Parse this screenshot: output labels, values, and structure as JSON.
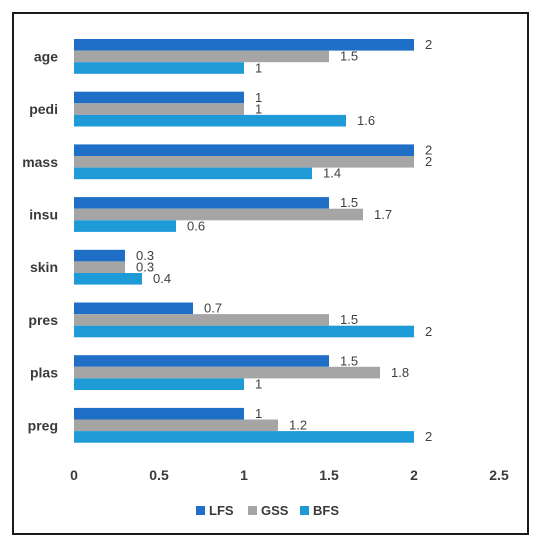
{
  "chart_data": {
    "type": "bar",
    "orientation": "horizontal",
    "categories": [
      "age",
      "pedi",
      "mass",
      "insu",
      "skin",
      "pres",
      "plas",
      "preg"
    ],
    "series": [
      {
        "name": "LFS",
        "color": "#1F6FC6",
        "values": [
          2,
          1,
          2,
          1.5,
          0.3,
          0.7,
          1.5,
          1
        ]
      },
      {
        "name": "GSS",
        "color": "#A5A5A5",
        "values": [
          1.5,
          1,
          2,
          1.7,
          0.3,
          1.5,
          1.8,
          1.2
        ]
      },
      {
        "name": "BFS",
        "color": "#1E9BD7",
        "values": [
          1,
          1.6,
          1.4,
          0.6,
          0.4,
          2,
          1,
          2
        ]
      }
    ],
    "data_labels": [
      [
        "2",
        "1.5",
        "1"
      ],
      [
        "1",
        "1",
        "1.6"
      ],
      [
        "2",
        "2",
        "1.4"
      ],
      [
        "1.5",
        "1.7",
        "0.6"
      ],
      [
        "0.3",
        "0.3",
        "0.4"
      ],
      [
        "0.7",
        "1.5",
        "2"
      ],
      [
        "1.5",
        "1.8",
        "1"
      ],
      [
        "1",
        "1.2",
        "2"
      ]
    ],
    "xlim": [
      0,
      2.5
    ],
    "x_ticks": [
      0,
      0.5,
      1,
      1.5,
      2,
      2.5
    ],
    "x_tick_labels": [
      "0",
      "0.5",
      "1",
      "1.5",
      "2",
      "2.5"
    ],
    "grid": false,
    "legend": "bottom",
    "title": "",
    "xlabel": "",
    "ylabel": ""
  }
}
